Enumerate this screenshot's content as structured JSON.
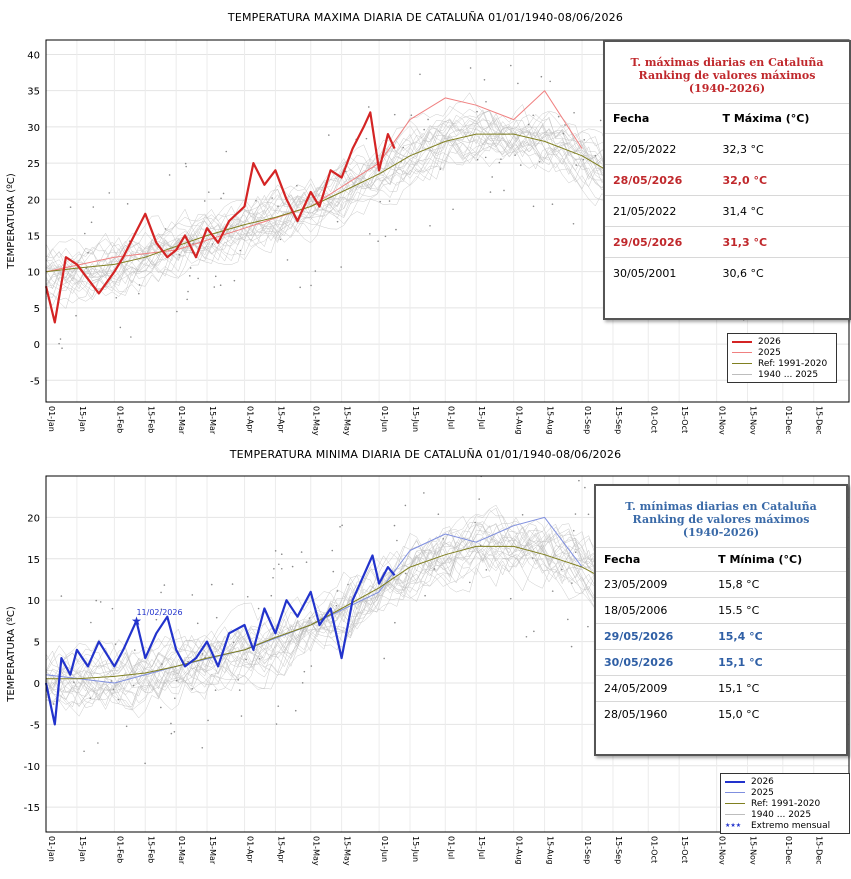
{
  "colors": {
    "max_2026": "#d42424",
    "max_2025": "#f08080",
    "min_2026": "#2233cc",
    "min_2025": "#7f8fdf",
    "reference": "#808020",
    "history": "#bdbdbd",
    "ranking_max_title": "#c0282c",
    "ranking_min_title": "#3a6aa8",
    "highlight_max": "#c0282c",
    "highlight_min": "#2f5fa5"
  },
  "x_tick_labels": [
    "01-Jan",
    "15-Jan",
    "01-Feb",
    "15-Feb",
    "01-Mar",
    "15-Mar",
    "01-Apr",
    "15-Apr",
    "01-May",
    "15-May",
    "01-Jun",
    "15-Jun",
    "01-Jul",
    "15-Jul",
    "01-Aug",
    "15-Aug",
    "01-Sep",
    "15-Sep",
    "01-Oct",
    "15-Oct",
    "01-Nov",
    "15-Nov",
    "01-Dec",
    "15-Dec"
  ],
  "chart_data": [
    {
      "type": "line",
      "title": "TEMPERATURA MAXIMA DIARIA DE CATALUÑA 01/01/1940-08/06/2026",
      "ylabel": "TEMPERATURA (ºC)",
      "xlabel": "",
      "ylim": [
        -8,
        42
      ],
      "yticks": [
        -5,
        0,
        5,
        10,
        15,
        20,
        25,
        30,
        35,
        40
      ],
      "grid": true,
      "legend_position": "bottom-right",
      "series": [
        {
          "name": "2026",
          "x": [
            "01-Jan",
            "05-Jan",
            "10-Jan",
            "15-Jan",
            "20-Jan",
            "25-Jan",
            "01-Feb",
            "05-Feb",
            "10-Feb",
            "15-Feb",
            "20-Feb",
            "25-Feb",
            "01-Mar",
            "05-Mar",
            "10-Mar",
            "15-Mar",
            "20-Mar",
            "25-Mar",
            "01-Apr",
            "05-Apr",
            "10-Apr",
            "15-Apr",
            "20-Apr",
            "25-Apr",
            "01-May",
            "05-May",
            "10-May",
            "15-May",
            "20-May",
            "25-May",
            "28-May",
            "01-Jun",
            "05-Jun",
            "08-Jun"
          ],
          "values": [
            8,
            3,
            12,
            11,
            9,
            7,
            10,
            12,
            15,
            18,
            14,
            12,
            13,
            15,
            12,
            16,
            14,
            17,
            19,
            25,
            22,
            24,
            20,
            17,
            21,
            19,
            24,
            23,
            27,
            30,
            32,
            24,
            29,
            27
          ]
        },
        {
          "name": "2025",
          "x": [
            "01-Jan",
            "01-Feb",
            "01-Mar",
            "01-Apr",
            "01-May",
            "01-Jun",
            "15-Jun",
            "01-Jul",
            "15-Jul",
            "01-Aug",
            "15-Aug",
            "01-Sep"
          ],
          "values": [
            10,
            12,
            13,
            16,
            19,
            25,
            31,
            34,
            33,
            31,
            35,
            27
          ]
        },
        {
          "name": "Ref: 1991-2020",
          "x": [
            "01-Jan",
            "15-Jan",
            "01-Feb",
            "15-Feb",
            "01-Mar",
            "15-Mar",
            "01-Apr",
            "15-Apr",
            "01-May",
            "15-May",
            "01-Jun",
            "15-Jun",
            "01-Jul",
            "15-Jul",
            "01-Aug",
            "15-Aug",
            "01-Sep",
            "15-Sep",
            "01-Oct",
            "15-Oct",
            "01-Nov",
            "15-Nov",
            "01-Dec",
            "15-Dec"
          ],
          "values": [
            10,
            10.5,
            11,
            12,
            13.5,
            15,
            16.5,
            17.5,
            19,
            21,
            23.5,
            26,
            28,
            29,
            29,
            28,
            26,
            23.5,
            21,
            18,
            14.5,
            12,
            10.5,
            10
          ]
        },
        {
          "name": "1940 ... 2025",
          "values": []
        }
      ]
    },
    {
      "type": "line",
      "title": "TEMPERATURA MINIMA DIARIA DE CATALUÑA 01/01/1940-08/06/2026",
      "ylabel": "TEMPERATURA (ºC)",
      "xlabel": "",
      "ylim": [
        -18,
        25
      ],
      "yticks": [
        -15,
        -10,
        -5,
        0,
        5,
        10,
        15,
        20
      ],
      "grid": true,
      "legend_position": "bottom-right",
      "annotation": {
        "text": "11/02/2026",
        "x": "11-Feb",
        "y": 7.5
      },
      "series": [
        {
          "name": "2026",
          "x": [
            "01-Jan",
            "05-Jan",
            "08-Jan",
            "12-Jan",
            "15-Jan",
            "20-Jan",
            "25-Jan",
            "01-Feb",
            "05-Feb",
            "11-Feb",
            "15-Feb",
            "20-Feb",
            "25-Feb",
            "01-Mar",
            "05-Mar",
            "10-Mar",
            "15-Mar",
            "20-Mar",
            "25-Mar",
            "01-Apr",
            "05-Apr",
            "10-Apr",
            "15-Apr",
            "20-Apr",
            "25-Apr",
            "01-May",
            "05-May",
            "10-May",
            "15-May",
            "20-May",
            "25-May",
            "29-May",
            "01-Jun",
            "05-Jun",
            "08-Jun"
          ],
          "values": [
            0,
            -5,
            3,
            1,
            4,
            2,
            5,
            2,
            4,
            7.5,
            3,
            6,
            8,
            4,
            2,
            3,
            5,
            2,
            6,
            7,
            4,
            9,
            6,
            10,
            8,
            11,
            7,
            9,
            3,
            10,
            13,
            15.4,
            12,
            14,
            13
          ]
        },
        {
          "name": "2025",
          "x": [
            "01-Jan",
            "01-Feb",
            "01-Mar",
            "01-Apr",
            "01-May",
            "01-Jun",
            "15-Jun",
            "01-Jul",
            "15-Jul",
            "01-Aug",
            "15-Aug",
            "01-Sep"
          ],
          "values": [
            1,
            0,
            2,
            4,
            7,
            11,
            16,
            18,
            17,
            19,
            20,
            14
          ]
        },
        {
          "name": "Ref: 1991-2020",
          "x": [
            "01-Jan",
            "15-Jan",
            "01-Feb",
            "15-Feb",
            "01-Mar",
            "15-Mar",
            "01-Apr",
            "15-Apr",
            "01-May",
            "15-May",
            "01-Jun",
            "15-Jun",
            "01-Jul",
            "15-Jul",
            "01-Aug",
            "15-Aug",
            "01-Sep",
            "15-Sep",
            "01-Oct",
            "15-Oct",
            "01-Nov",
            "15-Nov",
            "01-Dec",
            "15-Dec"
          ],
          "values": [
            0.5,
            0.5,
            0.8,
            1.2,
            2,
            3,
            4,
            5.5,
            7,
            9,
            11.5,
            14,
            15.5,
            16.5,
            16.5,
            15.5,
            14,
            12,
            9.5,
            7,
            4.5,
            2.5,
            1,
            0.5
          ]
        },
        {
          "name": "1940 ... 2025",
          "values": []
        },
        {
          "name": "Extremo mensual",
          "values": []
        }
      ]
    }
  ],
  "ranking_max": {
    "title_line1": "T. máximas diarias en Cataluña",
    "title_line2": "Ranking de valores máximos",
    "title_line3": "(1940-2026)",
    "col_date": "Fecha",
    "col_value": "T Máxima (°C)",
    "rows": [
      {
        "date": "22/05/2022",
        "value": "32,3 °C",
        "highlight": false
      },
      {
        "date": "28/05/2026",
        "value": "32,0 °C",
        "highlight": true
      },
      {
        "date": "21/05/2022",
        "value": "31,4 °C",
        "highlight": false
      },
      {
        "date": "29/05/2026",
        "value": "31,3 °C",
        "highlight": true
      },
      {
        "date": "30/05/2001",
        "value": "30,6 °C",
        "highlight": false
      }
    ]
  },
  "ranking_min": {
    "title_line1": "T. mínimas diarias en Cataluña",
    "title_line2": "Ranking de valores máximos",
    "title_line3": "(1940-2026)",
    "col_date": "Fecha",
    "col_value": "T Mínima (°C)",
    "rows": [
      {
        "date": "23/05/2009",
        "value": "15,8 °C",
        "highlight": false
      },
      {
        "date": "18/05/2006",
        "value": "15.5 °C",
        "highlight": false
      },
      {
        "date": "29/05/2026",
        "value": "15,4 °C",
        "highlight": true
      },
      {
        "date": "30/05/2026",
        "value": "15,1 °C",
        "highlight": true
      },
      {
        "date": "24/05/2009",
        "value": "15,1 °C",
        "highlight": false
      },
      {
        "date": "28/05/1960",
        "value": "15,0 °C",
        "highlight": false
      }
    ]
  },
  "legend_max": {
    "items": [
      {
        "label": "2026",
        "color_key": "max_2026",
        "width": 2.5
      },
      {
        "label": "2025",
        "color_key": "max_2025",
        "width": 1
      },
      {
        "label": "Ref: 1991-2020",
        "color_key": "reference",
        "width": 1
      },
      {
        "label": "1940 ... 2025",
        "color_key": "history",
        "width": 1
      }
    ]
  },
  "legend_min": {
    "items": [
      {
        "label": "2026",
        "color_key": "min_2026",
        "width": 2.5
      },
      {
        "label": "2025",
        "color_key": "min_2025",
        "width": 1
      },
      {
        "label": "Ref: 1991-2020",
        "color_key": "reference",
        "width": 1
      },
      {
        "label": "1940 ... 2025",
        "color_key": "history",
        "width": 1
      },
      {
        "label": "Extremo mensual",
        "color_key": "min_2026",
        "marker": "star"
      }
    ]
  }
}
